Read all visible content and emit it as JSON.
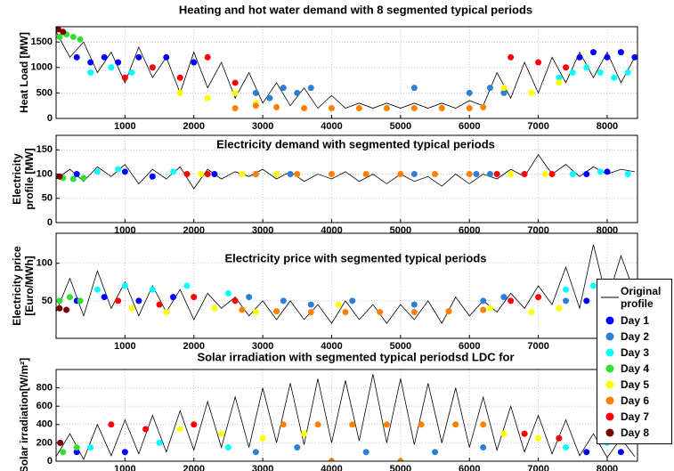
{
  "chart_data": [
    {
      "type": "line",
      "title": "Heating and hot water demand with 8 segmented typical periods",
      "ylabel": [
        "Heat Load [MW]"
      ],
      "xlim": [
        0,
        8440
      ],
      "xticks": [
        1000,
        2000,
        3000,
        4000,
        5000,
        6000,
        7000,
        8000
      ],
      "ylim": [
        0,
        1800
      ],
      "yticks": [
        0,
        500,
        1000,
        1500
      ],
      "grid": true,
      "series": [
        {
          "style": "line",
          "color": "#000000",
          "x": [
            0,
            200,
            400,
            600,
            800,
            1000,
            1200,
            1400,
            1600,
            1800,
            2000,
            2200,
            2400,
            2600,
            2800,
            3000,
            3200,
            3400,
            3600,
            3800,
            4000,
            4200,
            4400,
            4600,
            4800,
            5000,
            5200,
            5400,
            5600,
            5800,
            6000,
            6200,
            6400,
            6600,
            6800,
            7000,
            7200,
            7400,
            7600,
            7800,
            8000,
            8200,
            8400
          ],
          "values": [
            1700,
            1200,
            1500,
            900,
            1300,
            700,
            1400,
            800,
            1200,
            500,
            1300,
            600,
            1100,
            400,
            900,
            300,
            700,
            250,
            600,
            200,
            450,
            200,
            300,
            200,
            300,
            200,
            300,
            200,
            300,
            200,
            350,
            250,
            900,
            400,
            1100,
            500,
            1200,
            700,
            1300,
            800,
            1300,
            700,
            1200
          ]
        },
        {
          "style": "markers",
          "color": "#0000ff",
          "x": [
            300,
            500,
            700,
            900,
            1200,
            1600,
            2000,
            7600,
            7800,
            8000,
            8200,
            8400
          ],
          "values": [
            1200,
            1100,
            1200,
            1100,
            1200,
            1200,
            1100,
            1200,
            1300,
            1200,
            1300,
            1200
          ]
        },
        {
          "style": "markers",
          "color": "#2b7fd6",
          "x": [
            2900,
            3100,
            3300,
            3500,
            3700,
            5200,
            6000,
            6300,
            6500
          ],
          "values": [
            500,
            400,
            600,
            500,
            600,
            600,
            500,
            600,
            500
          ]
        },
        {
          "style": "markers",
          "color": "#00ffff",
          "x": [
            500,
            800,
            1100,
            1400,
            7300,
            7500,
            7700,
            7900,
            8100,
            8300
          ],
          "values": [
            900,
            1000,
            900,
            1000,
            800,
            900,
            1000,
            900,
            800,
            900
          ]
        },
        {
          "style": "markers",
          "color": "#33dd33",
          "x": [
            50,
            150,
            250,
            350
          ],
          "values": [
            1600,
            1650,
            1600,
            1550
          ]
        },
        {
          "style": "markers",
          "color": "#ffff00",
          "x": [
            1800,
            2200,
            2600,
            2900,
            6500,
            6900,
            7300
          ],
          "values": [
            500,
            400,
            500,
            300,
            600,
            500,
            700
          ]
        },
        {
          "style": "markers",
          "color": "#ff8000",
          "x": [
            2600,
            2900,
            3200,
            3600,
            4000,
            4400,
            4800,
            5200,
            5600,
            6000,
            6200
          ],
          "values": [
            200,
            250,
            220,
            200,
            200,
            200,
            200,
            200,
            200,
            200,
            220
          ]
        },
        {
          "style": "markers",
          "color": "#ff0000",
          "x": [
            1000,
            1400,
            1800,
            2200,
            2600,
            6600,
            7000,
            7400
          ],
          "values": [
            800,
            1000,
            800,
            1200,
            700,
            1200,
            1100,
            1000
          ]
        },
        {
          "style": "markers",
          "color": "#7a0000",
          "x": [
            30,
            100
          ],
          "values": [
            1750,
            1700
          ]
        }
      ]
    },
    {
      "type": "line",
      "title": "Electricity demand with segmented typical periods",
      "ylabel": [
        "Electricity",
        "profile [MW]"
      ],
      "xlim": [
        0,
        8440
      ],
      "xticks": [
        1000,
        2000,
        3000,
        4000,
        5000,
        6000,
        7000,
        8000
      ],
      "ylim": [
        0,
        180
      ],
      "yticks": [
        0,
        50,
        100,
        150
      ],
      "grid": true,
      "series": [
        {
          "style": "line",
          "color": "#000000",
          "x": [
            0,
            200,
            400,
            600,
            800,
            1000,
            1200,
            1400,
            1600,
            1800,
            2000,
            2200,
            2400,
            2600,
            2800,
            3000,
            3200,
            3400,
            3600,
            3800,
            4000,
            4200,
            4400,
            4600,
            4800,
            5000,
            5200,
            5400,
            5600,
            5800,
            6000,
            6200,
            6400,
            6600,
            6800,
            7000,
            7200,
            7400,
            7600,
            7800,
            8000,
            8200,
            8400
          ],
          "values": [
            90,
            110,
            85,
            115,
            95,
            120,
            80,
            110,
            90,
            115,
            70,
            110,
            90,
            105,
            95,
            110,
            90,
            105,
            85,
            100,
            90,
            105,
            85,
            100,
            80,
            100,
            85,
            95,
            75,
            100,
            80,
            100,
            90,
            110,
            95,
            140,
            100,
            120,
            95,
            115,
            100,
            110,
            105
          ]
        },
        {
          "style": "markers",
          "color": "#0000ff",
          "x": [
            300,
            1000,
            1400,
            2300,
            7700,
            8000
          ],
          "values": [
            100,
            105,
            95,
            100,
            100,
            105
          ]
        },
        {
          "style": "markers",
          "color": "#2b7fd6",
          "x": [
            2900,
            3400,
            5200,
            6100,
            6300
          ],
          "values": [
            100,
            100,
            100,
            100,
            100
          ]
        },
        {
          "style": "markers",
          "color": "#00ffff",
          "x": [
            600,
            900,
            1700,
            7500,
            7900,
            8300
          ],
          "values": [
            105,
            110,
            105,
            100,
            105,
            100
          ]
        },
        {
          "style": "markers",
          "color": "#33dd33",
          "x": [
            100,
            250,
            400
          ],
          "values": [
            92,
            90,
            92
          ]
        },
        {
          "style": "markers",
          "color": "#ffff00",
          "x": [
            2100,
            2700,
            3200,
            6600,
            7100
          ],
          "values": [
            100,
            100,
            100,
            100,
            100
          ]
        },
        {
          "style": "markers",
          "color": "#ff8000",
          "x": [
            2900,
            3500,
            4000,
            4500,
            5000,
            5500,
            6000
          ],
          "values": [
            100,
            100,
            100,
            100,
            100,
            100,
            100
          ]
        },
        {
          "style": "markers",
          "color": "#ff0000",
          "x": [
            1900,
            2200,
            6400,
            6800,
            7200
          ],
          "values": [
            100,
            100,
            100,
            100,
            100
          ]
        },
        {
          "style": "markers",
          "color": "#7a0000",
          "x": [
            50
          ],
          "values": [
            95
          ]
        }
      ]
    },
    {
      "type": "line",
      "title": "Electricity price with segmented typical periods",
      "ylabel": [
        "Electricity price",
        "[Euro/MWh]"
      ],
      "xlim": [
        0,
        8440
      ],
      "xticks": [
        1000,
        2000,
        3000,
        4000,
        5000,
        6000,
        7000,
        8000
      ],
      "ylim": [
        0,
        140
      ],
      "yticks": [
        50,
        100
      ],
      "grid": true,
      "series": [
        {
          "name": "Original profile",
          "style": "line",
          "color": "#000000",
          "x": [
            0,
            200,
            400,
            600,
            800,
            1000,
            1200,
            1400,
            1600,
            1800,
            2000,
            2200,
            2400,
            2600,
            2800,
            3000,
            3200,
            3400,
            3600,
            3800,
            4000,
            4200,
            4400,
            4600,
            4800,
            5000,
            5200,
            5400,
            5600,
            5800,
            6000,
            6200,
            6400,
            6600,
            6800,
            7000,
            7200,
            7400,
            7600,
            7800,
            8000,
            8200,
            8400
          ],
          "values": [
            35,
            80,
            30,
            90,
            40,
            75,
            30,
            70,
            35,
            65,
            25,
            60,
            40,
            55,
            30,
            50,
            25,
            50,
            25,
            45,
            20,
            50,
            25,
            45,
            20,
            45,
            25,
            50,
            20,
            55,
            30,
            50,
            35,
            60,
            40,
            70,
            45,
            95,
            40,
            125,
            50,
            110,
            60
          ]
        },
        {
          "name": "Day 1",
          "style": "markers",
          "color": "#0000ff",
          "x": [
            300,
            700,
            1200,
            1700,
            7700,
            8100
          ],
          "values": [
            50,
            55,
            50,
            55,
            50,
            55
          ]
        },
        {
          "name": "Day 2",
          "style": "markers",
          "color": "#2b7fd6",
          "x": [
            2800,
            3300,
            3700,
            4300,
            5200,
            6200,
            6500,
            7400
          ],
          "values": [
            55,
            50,
            45,
            50,
            45,
            50,
            55,
            50
          ]
        },
        {
          "name": "Day 3",
          "style": "markers",
          "color": "#00ffff",
          "x": [
            600,
            1000,
            1400,
            1900,
            2500,
            7400,
            7800,
            8200
          ],
          "values": [
            65,
            70,
            65,
            70,
            60,
            65,
            70,
            65
          ]
        },
        {
          "name": "Day 4",
          "style": "markers",
          "color": "#33dd33",
          "x": [
            50,
            200,
            350
          ],
          "values": [
            50,
            55,
            50
          ]
        },
        {
          "name": "Day 5",
          "style": "markers",
          "color": "#ffff00",
          "x": [
            1100,
            1600,
            2300,
            2900,
            4100,
            6300,
            6900,
            7300
          ],
          "values": [
            40,
            35,
            40,
            35,
            45,
            40,
            35,
            40
          ]
        },
        {
          "name": "Day 6",
          "style": "markers",
          "color": "#ff8000",
          "x": [
            2700,
            3200,
            3700,
            4200,
            4700,
            5200,
            5700,
            6200
          ],
          "values": [
            38,
            36,
            35,
            35,
            35,
            35,
            36,
            38
          ]
        },
        {
          "name": "Day 7",
          "style": "markers",
          "color": "#ff0000",
          "x": [
            900,
            1500,
            2000,
            2600,
            6600,
            7000
          ],
          "values": [
            50,
            45,
            55,
            50,
            50,
            55
          ]
        },
        {
          "name": "Day 8",
          "style": "markers",
          "color": "#7a0000",
          "x": [
            50,
            150
          ],
          "values": [
            40,
            38
          ]
        }
      ]
    },
    {
      "type": "line",
      "title": "Solar irradiation with segmented typical periodsd LDC for",
      "ylabel": [
        "Solar irradiation[W/m²]"
      ],
      "xlim": [
        0,
        8440
      ],
      "xticks": [
        1000,
        2000,
        3000,
        4000,
        5000,
        6000,
        7000,
        8000
      ],
      "ylim": [
        0,
        1000
      ],
      "yticks": [
        0,
        200,
        400,
        600,
        800
      ],
      "grid": true,
      "series": [
        {
          "style": "line",
          "color": "#000000",
          "x": [
            0,
            200,
            400,
            600,
            800,
            1000,
            1200,
            1400,
            1600,
            1800,
            2000,
            2200,
            2400,
            2600,
            2800,
            3000,
            3200,
            3400,
            3600,
            3800,
            4000,
            4200,
            4400,
            4600,
            4800,
            5000,
            5200,
            5400,
            5600,
            5800,
            6000,
            6200,
            6400,
            6600,
            6800,
            7000,
            7200,
            7400,
            7600,
            7800,
            8000,
            8200,
            8400
          ],
          "values": [
            50,
            300,
            20,
            400,
            60,
            450,
            80,
            500,
            100,
            550,
            120,
            650,
            150,
            700,
            150,
            800,
            200,
            850,
            180,
            900,
            200,
            880,
            220,
            950,
            200,
            900,
            180,
            850,
            200,
            800,
            150,
            700,
            120,
            600,
            100,
            500,
            80,
            450,
            60,
            300,
            40,
            250,
            50
          ]
        },
        {
          "style": "markers",
          "color": "#0000ff",
          "x": [
            300,
            1000,
            7700,
            8200
          ],
          "values": [
            100,
            100,
            100,
            100
          ]
        },
        {
          "style": "markers",
          "color": "#2b7fd6",
          "x": [
            2900,
            3500,
            4500,
            5500,
            6200
          ],
          "values": [
            100,
            150,
            100,
            100,
            150
          ]
        },
        {
          "style": "markers",
          "color": "#00ffff",
          "x": [
            500,
            1500,
            2500,
            7400,
            8000
          ],
          "values": [
            150,
            200,
            150,
            150,
            200
          ]
        },
        {
          "style": "markers",
          "color": "#33dd33",
          "x": [
            100,
            300
          ],
          "values": [
            100,
            150
          ]
        },
        {
          "style": "markers",
          "color": "#ffff00",
          "x": [
            1800,
            2400,
            3000,
            3600,
            6500,
            7000
          ],
          "values": [
            350,
            300,
            250,
            300,
            300,
            250
          ]
        },
        {
          "style": "markers",
          "color": "#ff8000",
          "x": [
            3300,
            3800,
            4300,
            4800,
            5300,
            5800,
            6200,
            4000,
            5000
          ],
          "values": [
            400,
            400,
            400,
            400,
            400,
            400,
            400,
            0,
            0
          ]
        },
        {
          "style": "markers",
          "color": "#ff0000",
          "x": [
            800,
            1300,
            2000,
            6800,
            7300
          ],
          "values": [
            400,
            350,
            400,
            300,
            250
          ]
        },
        {
          "style": "markers",
          "color": "#7a0000",
          "x": [
            60
          ],
          "values": [
            200
          ]
        }
      ]
    }
  ]
}
